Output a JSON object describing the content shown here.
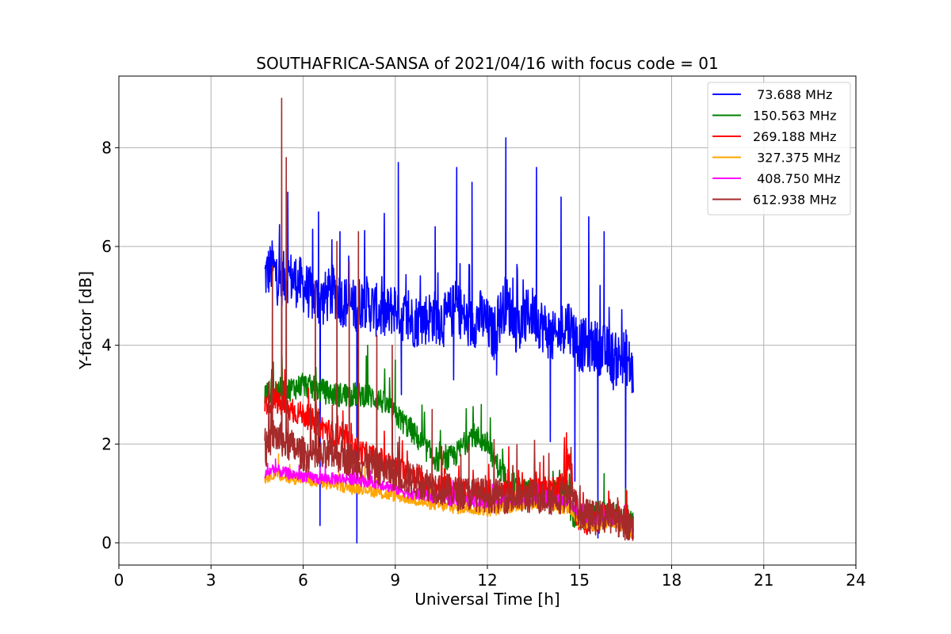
{
  "chart_data": {
    "type": "line",
    "title": "SOUTHAFRICA-SANSA of 2021/04/16 with focus code = 01",
    "xlabel": "Universal Time [h]",
    "ylabel": "Y-factor [dB]",
    "xlim": [
      0,
      24
    ],
    "ylim": [
      -0.45,
      9.45
    ],
    "xticks": [
      0,
      3,
      6,
      9,
      12,
      15,
      18,
      21,
      24
    ],
    "yticks": [
      0,
      2,
      4,
      6,
      8
    ],
    "grid": true,
    "legend_position": "top-right",
    "series": [
      {
        "name": " 73.688 MHz",
        "color": "#0000ff",
        "x": [
          4.75,
          5.0,
          5.2,
          5.5,
          5.8,
          6.0,
          6.3,
          6.6,
          7.0,
          7.3,
          7.6,
          8.0,
          8.4,
          8.7,
          9.0,
          9.4,
          9.8,
          10.2,
          10.6,
          11.0,
          11.4,
          11.8,
          12.2,
          12.6,
          13.0,
          13.4,
          13.8,
          14.2,
          14.6,
          15.0,
          15.4,
          15.8,
          16.2,
          16.5,
          16.75
        ],
        "y": [
          5.4,
          5.6,
          5.3,
          5.4,
          5.3,
          5.2,
          5.0,
          4.9,
          5.1,
          4.9,
          4.8,
          4.9,
          4.7,
          4.6,
          4.8,
          4.5,
          4.5,
          4.6,
          4.5,
          4.8,
          4.4,
          4.6,
          4.2,
          4.9,
          4.3,
          4.7,
          4.4,
          4.1,
          4.5,
          4.0,
          4.0,
          3.9,
          3.7,
          3.8,
          3.4
        ],
        "peaks": [
          [
            5.5,
            7.1
          ],
          [
            6.5,
            6.7
          ],
          [
            7.2,
            6.3
          ],
          [
            9.1,
            7.7
          ],
          [
            10.3,
            6.4
          ],
          [
            11.0,
            7.6
          ],
          [
            11.5,
            7.3
          ],
          [
            12.6,
            8.2
          ],
          [
            13.6,
            7.6
          ],
          [
            14.4,
            7.0
          ],
          [
            15.3,
            6.6
          ],
          [
            15.8,
            6.3
          ]
        ],
        "dips": [
          [
            6.55,
            0.35
          ],
          [
            7.75,
            0.0
          ],
          [
            9.2,
            3.0
          ],
          [
            10.9,
            3.3
          ],
          [
            12.3,
            3.4
          ],
          [
            14.05,
            2.05
          ],
          [
            14.85,
            1.25
          ],
          [
            15.6,
            0.1
          ],
          [
            16.1,
            3.1
          ],
          [
            16.5,
            0.2
          ]
        ]
      },
      {
        "name": "150.563 MHz",
        "color": "#008000",
        "x": [
          4.75,
          5.0,
          5.5,
          6.0,
          6.5,
          7.0,
          7.5,
          8.0,
          8.5,
          9.0,
          9.5,
          10.0,
          10.5,
          11.0,
          11.5,
          12.0,
          12.3,
          12.6,
          13.0,
          13.5,
          14.0,
          14.5,
          14.8,
          15.2,
          15.6,
          16.0,
          16.4,
          16.75
        ],
        "y": [
          3.0,
          3.1,
          3.1,
          3.2,
          3.1,
          3.0,
          3.0,
          3.0,
          2.9,
          2.6,
          2.3,
          1.9,
          1.6,
          1.8,
          2.2,
          2.0,
          1.6,
          1.3,
          1.1,
          1.0,
          1.0,
          1.1,
          0.5,
          0.5,
          0.6,
          0.6,
          0.5,
          0.4
        ],
        "peaks": [
          [
            8.1,
            4.0
          ],
          [
            9.0,
            3.7
          ],
          [
            11.8,
            2.8
          ],
          [
            15.8,
            1.4
          ],
          [
            16.5,
            1.1
          ]
        ]
      },
      {
        "name": "269.188 MHz",
        "color": "#ff0000",
        "x": [
          4.75,
          5.0,
          5.5,
          6.0,
          6.5,
          7.0,
          7.5,
          8.0,
          8.5,
          9.0,
          9.5,
          10.0,
          10.5,
          11.0,
          11.5,
          12.0,
          12.5,
          13.0,
          13.5,
          14.0,
          14.5,
          14.7,
          14.9,
          15.3,
          15.7,
          16.1,
          16.5,
          16.75
        ],
        "y": [
          2.8,
          2.9,
          2.7,
          2.6,
          2.4,
          2.2,
          2.0,
          1.8,
          1.7,
          1.5,
          1.4,
          1.2,
          1.1,
          1.1,
          1.0,
          0.9,
          1.0,
          1.0,
          1.1,
          1.1,
          1.2,
          1.7,
          0.5,
          0.4,
          0.5,
          0.6,
          0.4,
          0.3
        ],
        "peaks": [
          [
            10.6,
            1.5
          ],
          [
            12.6,
            1.4
          ],
          [
            14.6,
            1.9
          ]
        ]
      },
      {
        "name": " 327.375 MHz",
        "color": "#ffa500",
        "x": [
          4.75,
          5.0,
          5.5,
          6.0,
          6.5,
          7.0,
          7.5,
          8.0,
          8.5,
          9.0,
          9.5,
          10.0,
          10.5,
          11.0,
          11.5,
          12.0,
          12.5,
          13.0,
          13.5,
          14.0,
          14.5,
          14.7,
          15.0,
          15.5,
          16.0,
          16.5,
          16.75
        ],
        "y": [
          1.3,
          1.4,
          1.3,
          1.3,
          1.2,
          1.2,
          1.1,
          1.1,
          1.0,
          0.95,
          0.9,
          0.8,
          0.75,
          0.7,
          0.7,
          0.65,
          0.7,
          0.75,
          0.8,
          0.75,
          0.7,
          0.7,
          0.4,
          0.35,
          0.4,
          0.3,
          0.2
        ],
        "peaks": [
          [
            5.2,
            1.8
          ]
        ]
      },
      {
        "name": " 408.750 MHz",
        "color": "#ff00ff",
        "x": [
          4.75,
          5.0,
          5.5,
          6.0,
          6.5,
          7.0,
          7.5,
          8.0,
          8.5,
          9.0,
          9.5,
          10.0,
          10.5,
          11.0,
          11.5,
          12.0,
          12.5,
          13.0,
          13.5,
          14.0,
          14.5,
          14.7,
          15.0,
          15.5,
          16.0,
          16.5,
          16.75
        ],
        "y": [
          1.35,
          1.5,
          1.4,
          1.35,
          1.3,
          1.3,
          1.3,
          1.25,
          1.2,
          1.1,
          1.0,
          0.95,
          0.9,
          0.85,
          0.85,
          0.8,
          0.85,
          0.85,
          0.9,
          0.85,
          0.85,
          0.85,
          0.5,
          0.45,
          0.5,
          0.4,
          0.3
        ],
        "peaks": [
          [
            5.1,
            1.7
          ],
          [
            7.6,
            1.5
          ]
        ]
      },
      {
        "name": "612.938 MHz",
        "color": "#a52a2a",
        "x": [
          4.75,
          5.0,
          5.5,
          6.0,
          6.5,
          7.0,
          7.5,
          8.0,
          8.5,
          9.0,
          9.5,
          10.0,
          10.5,
          11.0,
          11.5,
          12.0,
          12.5,
          13.0,
          13.5,
          14.0,
          14.5,
          14.7,
          15.0,
          15.5,
          16.0,
          16.5,
          16.75
        ],
        "y": [
          1.8,
          2.2,
          2.0,
          1.8,
          1.7,
          1.8,
          1.7,
          1.6,
          1.5,
          1.4,
          1.3,
          1.2,
          1.1,
          1.0,
          1.0,
          0.95,
          0.95,
          0.9,
          0.95,
          0.9,
          0.95,
          0.95,
          0.6,
          0.5,
          0.55,
          0.4,
          0.3
        ],
        "peaks": [
          [
            5.3,
            9.0
          ],
          [
            5.45,
            7.8
          ],
          [
            5.0,
            5.6
          ],
          [
            6.4,
            5.3
          ],
          [
            7.1,
            6.1
          ],
          [
            7.5,
            5.7
          ],
          [
            7.8,
            6.3
          ],
          [
            8.4,
            4.2
          ],
          [
            8.9,
            4.0
          ],
          [
            10.2,
            2.7
          ],
          [
            11.4,
            2.0
          ]
        ]
      }
    ]
  }
}
